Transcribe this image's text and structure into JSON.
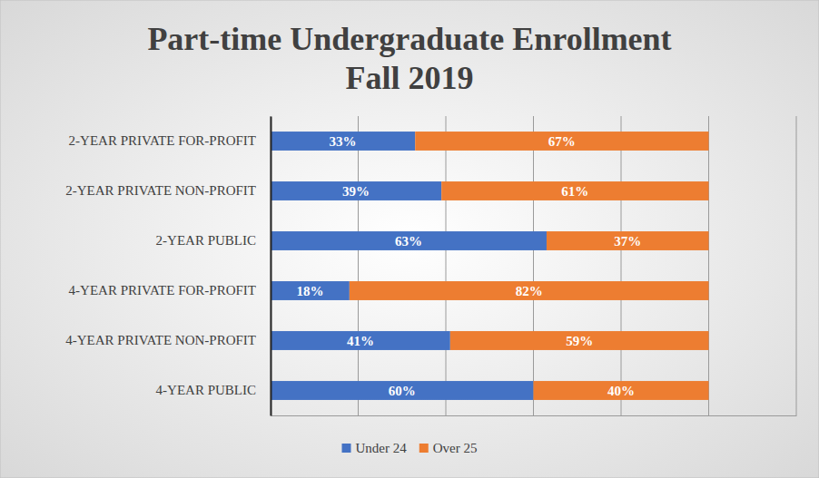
{
  "chart_data": {
    "type": "bar",
    "title": "Part-time Undergraduate Enrollment\nFall 2019",
    "orientation": "horizontal",
    "stacked": true,
    "data_labels": true,
    "grid": true,
    "tick_labels": "y",
    "legend": "bottom",
    "categories": [
      "2-YEAR PRIVATE FOR-PROFIT",
      "2-YEAR PRIVATE NON-PROFIT",
      "2-YEAR PUBLIC",
      "4-YEAR PRIVATE FOR-PROFIT",
      "4-YEAR PRIVATE NON-PROFIT",
      "4-YEAR PUBLIC"
    ],
    "xlim": [
      0,
      120
    ],
    "xticks": [
      0,
      20,
      40,
      60,
      80,
      100,
      120
    ],
    "series": [
      {
        "name": "Under 24",
        "color": "#4472c4",
        "values": [
          33,
          39,
          63,
          18,
          41,
          60
        ],
        "value_labels": [
          "33%",
          "39%",
          "63%",
          "18%",
          "41%",
          "60%"
        ]
      },
      {
        "name": "Over 25",
        "color": "#ed7d31",
        "values": [
          67,
          61,
          37,
          82,
          59,
          40
        ],
        "value_labels": [
          "67%",
          "61%",
          "37%",
          "82%",
          "59%",
          "40%"
        ]
      }
    ]
  }
}
